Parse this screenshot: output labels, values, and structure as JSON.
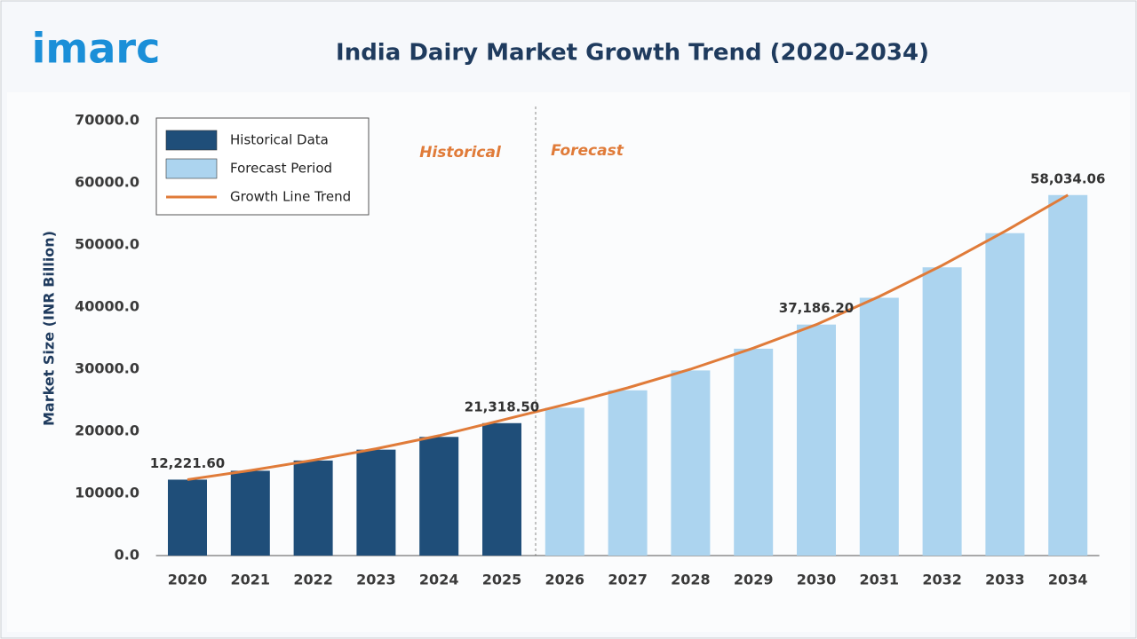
{
  "logo": "imarc",
  "chart_data": {
    "type": "bar",
    "title": "India Dairy Market Growth Trend (2020-2034)",
    "y_label": "Market Size (INR Billion)",
    "categories": [
      "2020",
      "2021",
      "2022",
      "2023",
      "2024",
      "2025",
      "2026",
      "2027",
      "2028",
      "2029",
      "2030",
      "2031",
      "2032",
      "2033",
      "2034"
    ],
    "series": [
      {
        "name": "Historical Data",
        "color": "#1f4e79",
        "kind": "bar",
        "values": [
          12221.6,
          13650,
          15300,
          17050,
          19100,
          21318.5,
          null,
          null,
          null,
          null,
          null,
          null,
          null,
          null,
          null
        ],
        "value_labels": [
          "12,221.60",
          null,
          null,
          null,
          null,
          "21,318.50",
          null,
          null,
          null,
          null,
          null,
          null,
          null,
          null,
          null
        ]
      },
      {
        "name": "Forecast Period",
        "color": "#acd4ef",
        "kind": "bar",
        "values": [
          null,
          null,
          null,
          null,
          null,
          null,
          23800,
          26600,
          29800,
          33300,
          37186.2,
          41500,
          46400,
          51900,
          58034.06
        ],
        "value_labels": [
          null,
          null,
          null,
          null,
          null,
          null,
          null,
          null,
          null,
          null,
          "37,186.20",
          null,
          null,
          null,
          "58,034.06"
        ]
      },
      {
        "name": "Growth Line Trend",
        "color": "#e07b39",
        "kind": "line",
        "values": [
          12221.6,
          13700,
          15350,
          17200,
          19300,
          21800,
          24300,
          27000,
          30000,
          33400,
          37186.2,
          41700,
          46700,
          52200,
          58034.06
        ]
      }
    ],
    "annotations": [
      "Historical",
      "Forecast"
    ],
    "ylim": [
      0,
      70000
    ],
    "yticks": [
      {
        "value": 0,
        "label": "0.0"
      },
      {
        "value": 10000,
        "label": "10000.0"
      },
      {
        "value": 20000,
        "label": "20000.0"
      },
      {
        "value": 30000,
        "label": "30000.0"
      },
      {
        "value": 40000,
        "label": "40000.0"
      },
      {
        "value": 50000,
        "label": "50000.0"
      },
      {
        "value": 60000,
        "label": "60000.0"
      },
      {
        "value": 70000,
        "label": "70000.0"
      }
    ],
    "grid": false
  }
}
